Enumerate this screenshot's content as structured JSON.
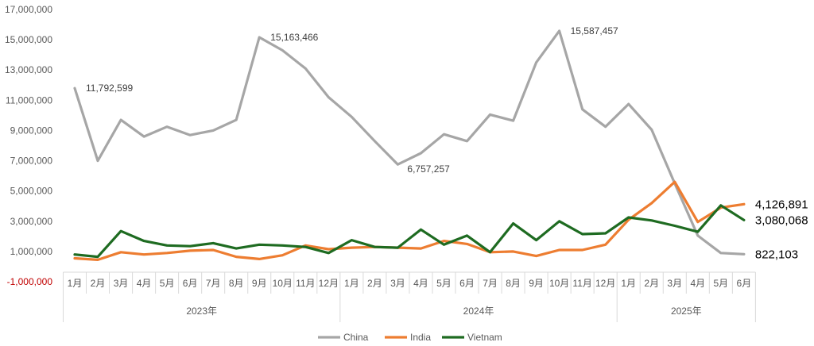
{
  "chart_data": {
    "type": "line",
    "y_ticks": [
      "17,000,000",
      "15,000,000",
      "13,000,000",
      "11,000,000",
      "9,000,000",
      "7,000,000",
      "5,000,000",
      "3,000,000",
      "1,000,000",
      "-1,000,000"
    ],
    "ylim": [
      -1000000,
      17000000
    ],
    "grid": false,
    "legend_position": "bottom",
    "months": [
      "1月",
      "2月",
      "3月",
      "4月",
      "5月",
      "6月",
      "7月",
      "8月",
      "9月",
      "10月",
      "11月",
      "12月",
      "1月",
      "2月",
      "3月",
      "4月",
      "5月",
      "6月",
      "7月",
      "8月",
      "9月",
      "10月",
      "11月",
      "12月",
      "1月",
      "2月",
      "3月",
      "4月",
      "5月",
      "6月"
    ],
    "years": [
      {
        "label": "2023年",
        "count": 12
      },
      {
        "label": "2024年",
        "count": 12
      },
      {
        "label": "2025年",
        "count": 6
      }
    ],
    "series": [
      {
        "name": "China",
        "color": "#a6a6a6",
        "values": [
          11792599,
          7000000,
          9700000,
          8600000,
          9250000,
          8700000,
          9000000,
          9700000,
          15163466,
          14300000,
          13100000,
          11200000,
          9900000,
          8300000,
          6757257,
          7500000,
          8750000,
          8300000,
          10050000,
          9650000,
          13500000,
          15587457,
          10400000,
          9250000,
          10750000,
          9050000,
          5500000,
          2050000,
          900000,
          822103
        ]
      },
      {
        "name": "India",
        "color": "#ed7d31",
        "values": [
          550000,
          450000,
          950000,
          800000,
          900000,
          1050000,
          1100000,
          650000,
          500000,
          750000,
          1400000,
          1150000,
          1250000,
          1300000,
          1250000,
          1200000,
          1700000,
          1500000,
          950000,
          1000000,
          700000,
          1100000,
          1100000,
          1450000,
          3100000,
          4200000,
          5600000,
          2950000,
          3900000,
          4126891
        ]
      },
      {
        "name": "Vietnam",
        "color": "#1e6b21",
        "values": [
          800000,
          650000,
          2350000,
          1700000,
          1400000,
          1350000,
          1550000,
          1200000,
          1450000,
          1400000,
          1300000,
          900000,
          1750000,
          1300000,
          1250000,
          2450000,
          1450000,
          2050000,
          950000,
          2850000,
          1750000,
          3000000,
          2150000,
          2200000,
          3250000,
          3050000,
          2700000,
          2300000,
          4050000,
          3080068
        ]
      }
    ],
    "annotations": [
      {
        "series": 0,
        "index": 0,
        "text": "11,792,599"
      },
      {
        "series": 0,
        "index": 8,
        "text": "15,163,466"
      },
      {
        "series": 0,
        "index": 14,
        "text": "6,757,257"
      },
      {
        "series": 0,
        "index": 21,
        "text": "15,587,457"
      }
    ],
    "end_labels": [
      {
        "series": 1,
        "text": "4,126,891"
      },
      {
        "series": 2,
        "text": "3,080,068"
      },
      {
        "series": 0,
        "text": "822,103"
      }
    ]
  }
}
